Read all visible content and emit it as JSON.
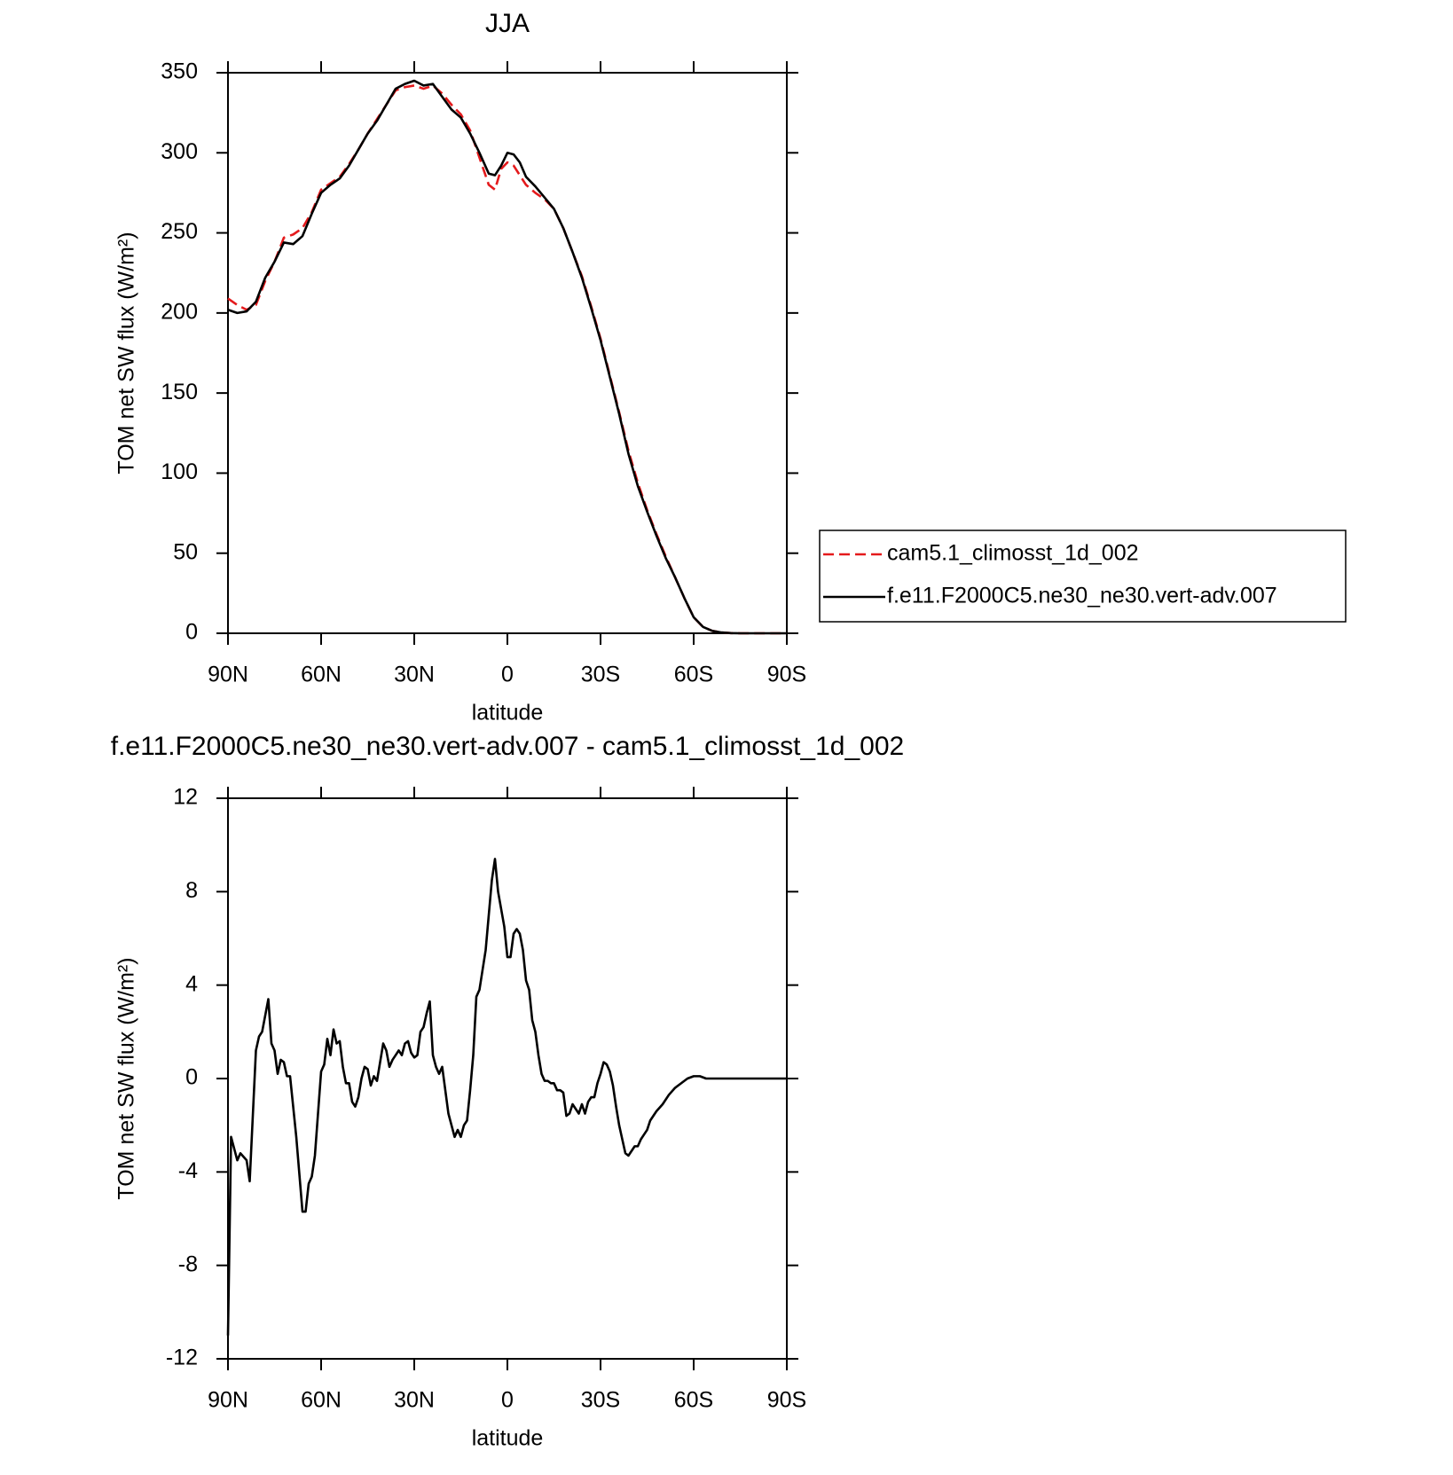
{
  "chart_data": [
    {
      "type": "line",
      "title": "JJA",
      "xlabel": "latitude",
      "ylabel": "TOM net SW flux (W/m²)",
      "x": [
        90,
        87,
        84,
        81,
        78,
        75,
        72,
        69,
        66,
        63,
        60,
        57,
        54,
        51,
        48,
        45,
        42,
        39,
        36,
        33,
        30,
        27,
        24,
        21,
        18,
        15,
        12,
        9,
        6,
        4,
        2,
        0,
        -2,
        -4,
        -6,
        -9,
        -12,
        -15,
        -18,
        -21,
        -24,
        -27,
        -30,
        -33,
        -36,
        -39,
        -42,
        -45,
        -48,
        -51,
        -54,
        -57,
        -60,
        -63,
        -66,
        -69,
        -72,
        -75,
        -90
      ],
      "series": [
        {
          "name": "cam5.1_climosst_1d_002",
          "color": "#e41a1c",
          "linestyle": "dashed",
          "values": [
            209,
            205,
            202,
            205,
            220,
            232,
            247,
            249,
            253,
            263,
            277,
            281,
            285,
            293,
            302,
            312,
            321,
            330,
            339,
            341,
            342,
            340,
            342,
            337,
            330,
            324,
            314,
            297,
            280,
            277,
            290,
            294,
            292,
            286,
            280,
            275,
            271,
            265,
            253,
            238,
            223,
            204,
            184,
            161,
            138,
            114,
            94,
            77,
            62,
            48,
            35,
            22,
            10,
            4,
            1.5,
            0.5,
            0.1,
            0,
            0
          ]
        },
        {
          "name": "f.e11.F2000C5.ne30_ne30.vert-adv.007",
          "color": "#000000",
          "linestyle": "solid",
          "values": [
            202,
            200,
            201,
            207,
            222,
            232,
            244,
            243,
            248,
            262,
            275,
            280,
            284,
            292,
            302,
            312,
            320,
            330,
            340,
            343,
            345,
            342,
            343,
            335,
            327,
            322,
            312,
            300,
            287,
            286,
            292,
            300,
            299,
            294,
            285,
            279,
            272,
            265,
            253,
            238,
            222,
            203,
            183,
            160,
            137,
            112,
            92,
            76,
            61,
            47,
            35,
            22,
            10,
            4,
            1.5,
            0.5,
            0.1,
            0,
            0
          ]
        }
      ],
      "xlim": [
        90,
        -90
      ],
      "ylim": [
        0,
        350
      ],
      "xticks": [
        {
          "value": 90,
          "label": "90N"
        },
        {
          "value": 60,
          "label": "60N"
        },
        {
          "value": 30,
          "label": "30N"
        },
        0,
        {
          "value": -30,
          "label": "30S"
        },
        {
          "value": -60,
          "label": "60S"
        },
        {
          "value": -90,
          "label": "90S"
        }
      ],
      "yticks": [
        0,
        50,
        100,
        150,
        200,
        250,
        300,
        350
      ],
      "legend": "right"
    },
    {
      "type": "line",
      "title": "f.e11.F2000C5.ne30_ne30.vert-adv.007 - cam5.1_climosst_1d_002",
      "xlabel": "latitude",
      "ylabel": "TOM net SW flux (W/m²)",
      "x": [
        90,
        89,
        87,
        86,
        84,
        83,
        81,
        80,
        79,
        77,
        76,
        75,
        74,
        73,
        72,
        71,
        70,
        68,
        66,
        65,
        64,
        63,
        62,
        61,
        60,
        59,
        58,
        57,
        56,
        55,
        54,
        53,
        52,
        51,
        50,
        49,
        48,
        47,
        46,
        45,
        44,
        43,
        42,
        41,
        40,
        39,
        38,
        37,
        36,
        35,
        34,
        33,
        32,
        31,
        30,
        29,
        28,
        27,
        26,
        25,
        24,
        23,
        22,
        21,
        20,
        19,
        18,
        17,
        16,
        15,
        14,
        13,
        12,
        11,
        10,
        9,
        7,
        5,
        4,
        3,
        1,
        0,
        -1,
        -2,
        -3,
        -4,
        -5,
        -6,
        -7,
        -8,
        -9,
        -10,
        -11,
        -12,
        -13,
        -14,
        -15,
        -16,
        -17,
        -18,
        -19,
        -20,
        -21,
        -22,
        -23,
        -24,
        -25,
        -26,
        -27,
        -28,
        -29,
        -30,
        -31,
        -32,
        -33,
        -34,
        -35,
        -36,
        -37,
        -38,
        -39,
        -40,
        -41,
        -42,
        -43,
        -44,
        -45,
        -46,
        -48,
        -50,
        -52,
        -54,
        -56,
        -58,
        -60,
        -62,
        -64,
        -70,
        -80,
        -90
      ],
      "series": [
        {
          "name": "f.e11.F2000C5.ne30_ne30.vert-adv.007 - cam5.1_climosst_1d_002",
          "color": "#000000",
          "linestyle": "solid",
          "values": [
            -11,
            -2.5,
            -3.5,
            -3.2,
            -3.5,
            -4.4,
            1.2,
            1.8,
            2,
            3.4,
            1.5,
            1.2,
            0.2,
            0.8,
            0.7,
            0.1,
            0.1,
            -2.5,
            -5.7,
            -5.7,
            -4.5,
            -4.2,
            -3.3,
            -1.5,
            0.3,
            0.6,
            1.7,
            1,
            2.1,
            1.5,
            1.6,
            0.5,
            -0.2,
            -0.2,
            -1,
            -1.2,
            -0.8,
            0,
            0.5,
            0.4,
            -0.3,
            0.1,
            -0.1,
            0.7,
            1.5,
            1.2,
            0.5,
            0.8,
            1,
            1.2,
            1,
            1.5,
            1.6,
            1.1,
            0.9,
            1,
            2,
            2.2,
            2.8,
            3.3,
            1,
            0.5,
            0.2,
            0.5,
            -0.5,
            -1.5,
            -2,
            -2.5,
            -2.2,
            -2.5,
            -2,
            -1.8,
            -0.5,
            1,
            3.5,
            3.8,
            5.5,
            8.5,
            9.4,
            8,
            6.5,
            5.2,
            5.2,
            6.2,
            6.4,
            6.2,
            5.5,
            4.2,
            3.8,
            2.5,
            2,
            1,
            0.2,
            -0.1,
            -0.1,
            -0.2,
            -0.2,
            -0.5,
            -0.5,
            -0.6,
            -1.6,
            -1.5,
            -1.1,
            -1.3,
            -1.5,
            -1.1,
            -1.5,
            -1,
            -0.8,
            -0.8,
            -0.2,
            0.2,
            0.7,
            0.6,
            0.3,
            -0.3,
            -1.2,
            -2,
            -2.6,
            -3.2,
            -3.3,
            -3.1,
            -2.9,
            -2.9,
            -2.6,
            -2.4,
            -2.2,
            -1.8,
            -1.4,
            -1.1,
            -0.7,
            -0.4,
            -0.2,
            0,
            0.1,
            0.1,
            0,
            0,
            0,
            0
          ]
        }
      ],
      "xlim": [
        90,
        -90
      ],
      "ylim": [
        -12,
        12
      ],
      "xticks": [
        {
          "value": 90,
          "label": "90N"
        },
        {
          "value": 60,
          "label": "60N"
        },
        {
          "value": 30,
          "label": "30N"
        },
        0,
        {
          "value": -30,
          "label": "30S"
        },
        {
          "value": -60,
          "label": "60S"
        },
        {
          "value": -90,
          "label": "90S"
        }
      ],
      "yticks": [
        -12,
        -8,
        -4,
        0,
        4,
        8,
        12
      ]
    }
  ]
}
